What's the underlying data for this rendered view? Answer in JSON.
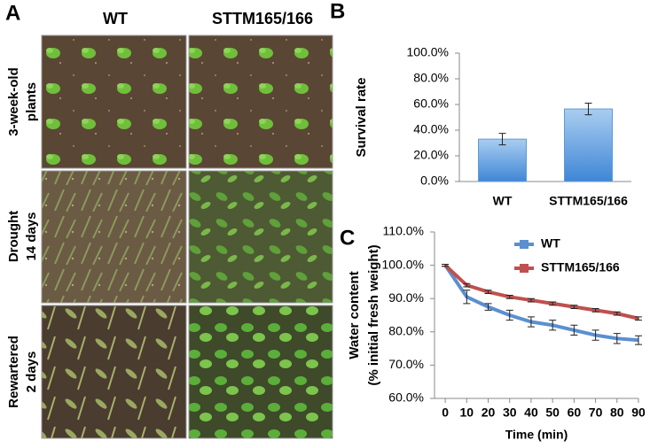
{
  "panel_a": {
    "letter": "A",
    "columns": [
      "WT",
      "STTM165/166"
    ],
    "rows": [
      [
        "3-week-old",
        "plants"
      ],
      [
        "Drought",
        "14 days"
      ],
      [
        "Rewartered",
        "2 days"
      ]
    ]
  },
  "chart_data": [
    {
      "type": "bar",
      "panel": "B",
      "ylabel": [
        "Survival rate"
      ],
      "categories": [
        "WT",
        "STTM165/166"
      ],
      "values": [
        33,
        56.5
      ],
      "errors": [
        4.5,
        4.5
      ],
      "color": "#5b9bd5",
      "ylim": [
        0,
        100
      ],
      "yticks": [
        {
          "value": 0,
          "label": "0.0%"
        },
        {
          "value": 20,
          "label": "20.0%"
        },
        {
          "value": 40,
          "label": "40.0%"
        },
        {
          "value": 60,
          "label": "60.0%"
        },
        {
          "value": 80,
          "label": "80.0%"
        },
        {
          "value": 100,
          "label": "100.0%"
        }
      ],
      "grid": false
    },
    {
      "type": "line",
      "panel": "C",
      "xlabel": "Time (min)",
      "ylabel": [
        "Water content",
        "(% initial fresh weight)"
      ],
      "x": [
        0,
        10,
        20,
        30,
        40,
        50,
        60,
        70,
        80,
        90
      ],
      "series": [
        {
          "name": "WT",
          "color": "#5b8fd0",
          "values": [
            100,
            90.5,
            87.5,
            85,
            83,
            82,
            80.5,
            79,
            78,
            77.5
          ],
          "errors": [
            0.3,
            2,
            1,
            1.5,
            1.5,
            1.5,
            1.5,
            1.5,
            1.5,
            1.3
          ]
        },
        {
          "name": "STTM165/166",
          "color": "#c0504d",
          "values": [
            100,
            94,
            92,
            90.5,
            89.5,
            88.5,
            87.5,
            86.5,
            85.5,
            84
          ],
          "errors": [
            0.3,
            0.5,
            0.5,
            0.5,
            0.5,
            0.5,
            0.5,
            0.5,
            0.5,
            0.5
          ]
        }
      ],
      "xlim": [
        -5,
        90
      ],
      "xticks": [
        0,
        10,
        20,
        30,
        40,
        50,
        60,
        70,
        80,
        90
      ],
      "ylim": [
        60,
        110
      ],
      "yticks": [
        {
          "value": 60,
          "label": "60.0%"
        },
        {
          "value": 70,
          "label": "70.0%"
        },
        {
          "value": 80,
          "label": "80.0%"
        },
        {
          "value": 90,
          "label": "90.0%"
        },
        {
          "value": 100,
          "label": "100.0%"
        },
        {
          "value": 110,
          "label": "110.0%"
        }
      ],
      "legend": "upper right",
      "grid": false
    }
  ]
}
